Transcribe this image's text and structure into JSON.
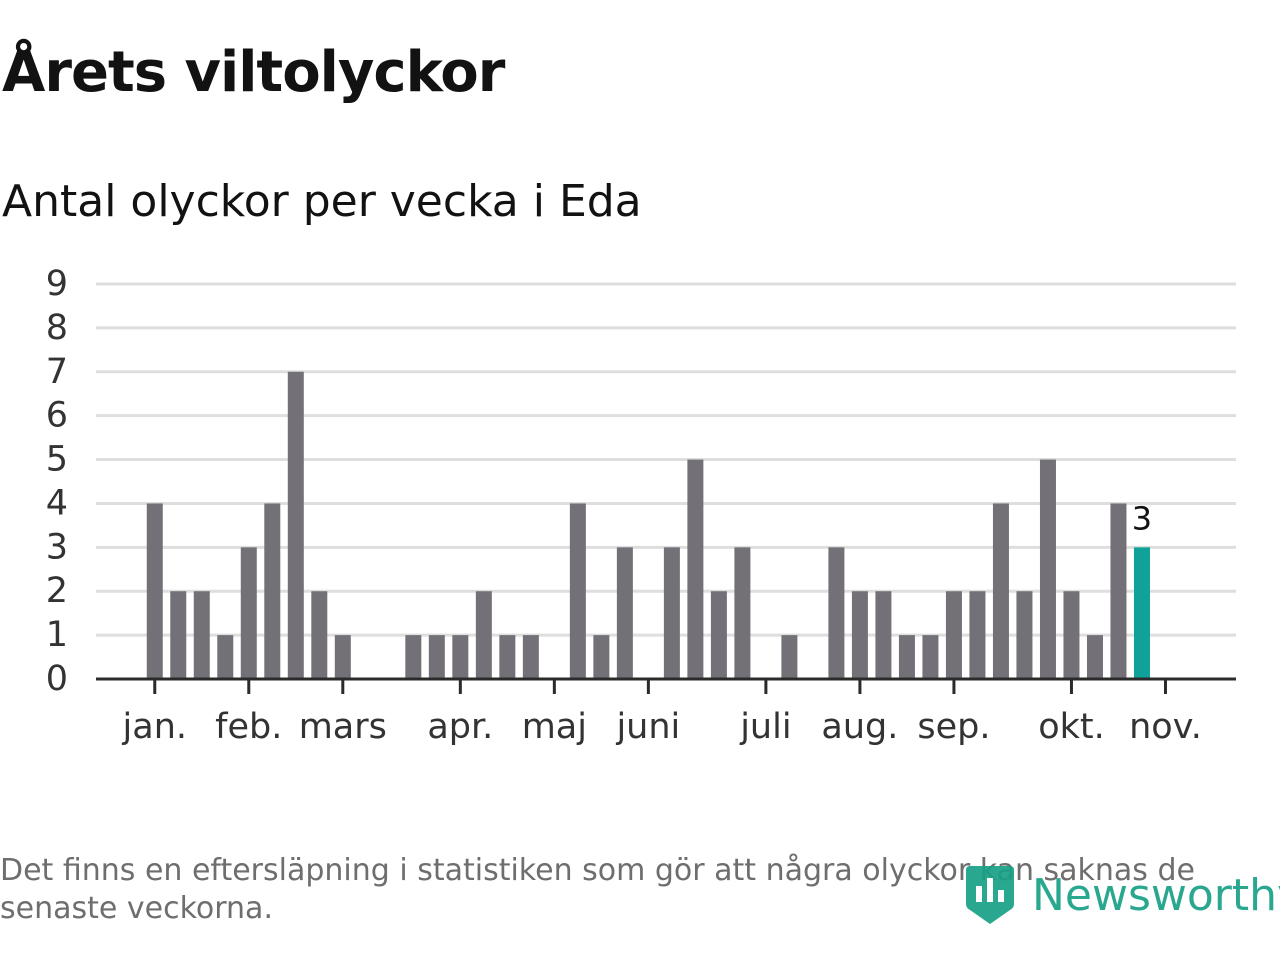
{
  "title": "Årets viltolyckor",
  "subtitle": "Antal olyckor per vecka i Eda",
  "footnote": "Det finns en eftersläpning i statistiken som gör att några olyckor kan saknas de senaste veckorna.",
  "brand": {
    "name": "Newsworthy",
    "icon": "newsworthy-logo-icon"
  },
  "colors": {
    "bar": "#737177",
    "highlight": "#10a29a",
    "grid": "#dedede",
    "axis": "#2b2b2b",
    "brand": "#18a086"
  },
  "chart_data": {
    "type": "bar",
    "title": "Antal olyckor per vecka i Eda",
    "xlabel": "",
    "ylabel": "",
    "ylim": [
      0,
      9
    ],
    "yticks": [
      0,
      1,
      2,
      3,
      4,
      5,
      6,
      7,
      8,
      9
    ],
    "x_range": [
      0.5,
      49
    ],
    "weeks": [
      1,
      2,
      3,
      4,
      5,
      6,
      7,
      8,
      9,
      10,
      11,
      12,
      13,
      14,
      15,
      16,
      17,
      18,
      19,
      20,
      21,
      22,
      23,
      24,
      25,
      26,
      27,
      28,
      29,
      30,
      31,
      32,
      33,
      34,
      35,
      36,
      37,
      38,
      39,
      40,
      41,
      42,
      43,
      44,
      45
    ],
    "values": [
      0,
      0,
      4,
      2,
      2,
      1,
      3,
      4,
      7,
      2,
      1,
      0,
      0,
      1,
      1,
      1,
      2,
      1,
      1,
      0,
      4,
      1,
      3,
      0,
      3,
      5,
      2,
      3,
      0,
      1,
      0,
      3,
      2,
      2,
      1,
      1,
      2,
      2,
      4,
      2,
      5,
      2,
      1,
      4,
      3
    ],
    "highlight_index": 44,
    "annotations": [
      {
        "week": 45,
        "text": "3"
      }
    ],
    "month_ticks": [
      {
        "label": "jan.",
        "pos": 3
      },
      {
        "label": "feb.",
        "pos": 7
      },
      {
        "label": "mars",
        "pos": 11
      },
      {
        "label": "apr.",
        "pos": 16
      },
      {
        "label": "maj",
        "pos": 20
      },
      {
        "label": "juni",
        "pos": 24
      },
      {
        "label": "juli",
        "pos": 29
      },
      {
        "label": "aug.",
        "pos": 33
      },
      {
        "label": "sep.",
        "pos": 37
      },
      {
        "label": "okt.",
        "pos": 42
      },
      {
        "label": "nov.",
        "pos": 46
      }
    ],
    "grid": true,
    "legend": "none"
  }
}
